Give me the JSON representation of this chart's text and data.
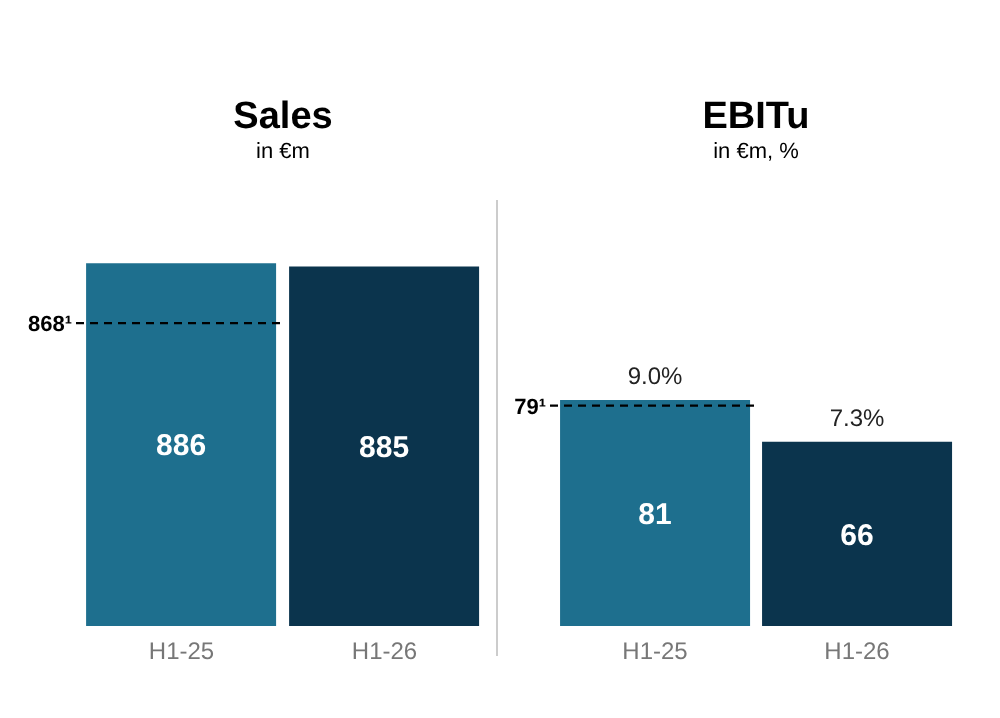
{
  "chart_data": [
    {
      "type": "bar",
      "title": "Sales",
      "subtitle": "in €m",
      "categories": [
        "H1-25",
        "H1-26"
      ],
      "values": [
        886,
        885
      ],
      "colors": [
        "#1e6f8e",
        "#0b344d"
      ],
      "data_labels": true,
      "ylim": [
        777,
        905
      ],
      "tick_labels": "x",
      "ref_lines": [
        {
          "axis": "y",
          "value": 868,
          "label": "868¹",
          "line_style": "dashed",
          "color": "#000000"
        }
      ]
    },
    {
      "type": "bar",
      "title": "EBITu",
      "subtitle": "in €m, %",
      "categories": [
        "H1-25",
        "H1-26"
      ],
      "values": [
        81,
        66
      ],
      "colors": [
        "#1e6f8e",
        "#0b344d"
      ],
      "data_labels": true,
      "tick_labels": "x",
      "ref_lines": [
        {
          "axis": "y",
          "value": 79,
          "label": "79¹",
          "line_style": "dashed",
          "color": "#000000"
        }
      ],
      "annotations": [
        {
          "text": "9.0%",
          "x": "H1-25",
          "y": 81
        },
        {
          "text": "7.3%",
          "x": "H1-26",
          "y": 66
        }
      ]
    }
  ]
}
